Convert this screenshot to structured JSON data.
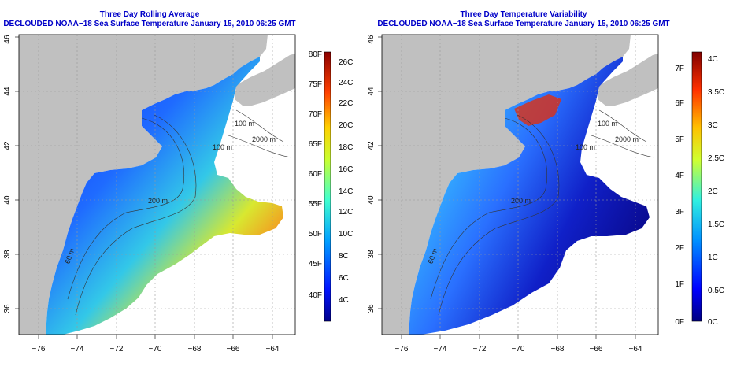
{
  "panels": [
    {
      "title_line1": "Three Day Rolling Average",
      "title_line2": "DECLOUDED NOAA−18 Sea Surface Temperature January 15, 2010 06:25 GMT",
      "x_ticks": [
        "−76",
        "−74",
        "−72",
        "−70",
        "−68",
        "−66",
        "−64"
      ],
      "y_ticks": [
        "36",
        "38",
        "40",
        "42",
        "44",
        "46"
      ],
      "contour_labels": [
        "100 m",
        "100 m",
        "2000 m",
        "200 m",
        "60 m"
      ],
      "colorbar": {
        "left_labels": [
          "80F",
          "75F",
          "70F",
          "65F",
          "60F",
          "55F",
          "50F",
          "45F",
          "40F"
        ],
        "right_labels": [
          "26C",
          "24C",
          "22C",
          "20C",
          "18C",
          "16C",
          "14C",
          "12C",
          "10C",
          "8C",
          "6C",
          "4C"
        ]
      }
    },
    {
      "title_line1": "Three Day Temperature Variability",
      "title_line2": "DECLOUDED NOAA−18 Sea Surface Temperature January 15, 2010 06:25 GMT",
      "x_ticks": [
        "−76",
        "−74",
        "−72",
        "−70",
        "−68",
        "−66",
        "−64"
      ],
      "y_ticks": [
        "36",
        "38",
        "40",
        "42",
        "44",
        "46"
      ],
      "contour_labels": [
        "100 m",
        "100 m",
        "2000 m",
        "200 m",
        "60 m"
      ],
      "colorbar": {
        "left_labels": [
          "7F",
          "6F",
          "5F",
          "4F",
          "3F",
          "2F",
          "1F",
          "0F"
        ],
        "right_labels": [
          "4C",
          "3.5C",
          "3C",
          "2.5C",
          "2C",
          "1.5C",
          "1C",
          "0.5C",
          "0C"
        ]
      }
    }
  ],
  "colors": {
    "title": "#0000c8",
    "land": "#c0c0c0",
    "ocean_nodata": "#ffffff"
  }
}
